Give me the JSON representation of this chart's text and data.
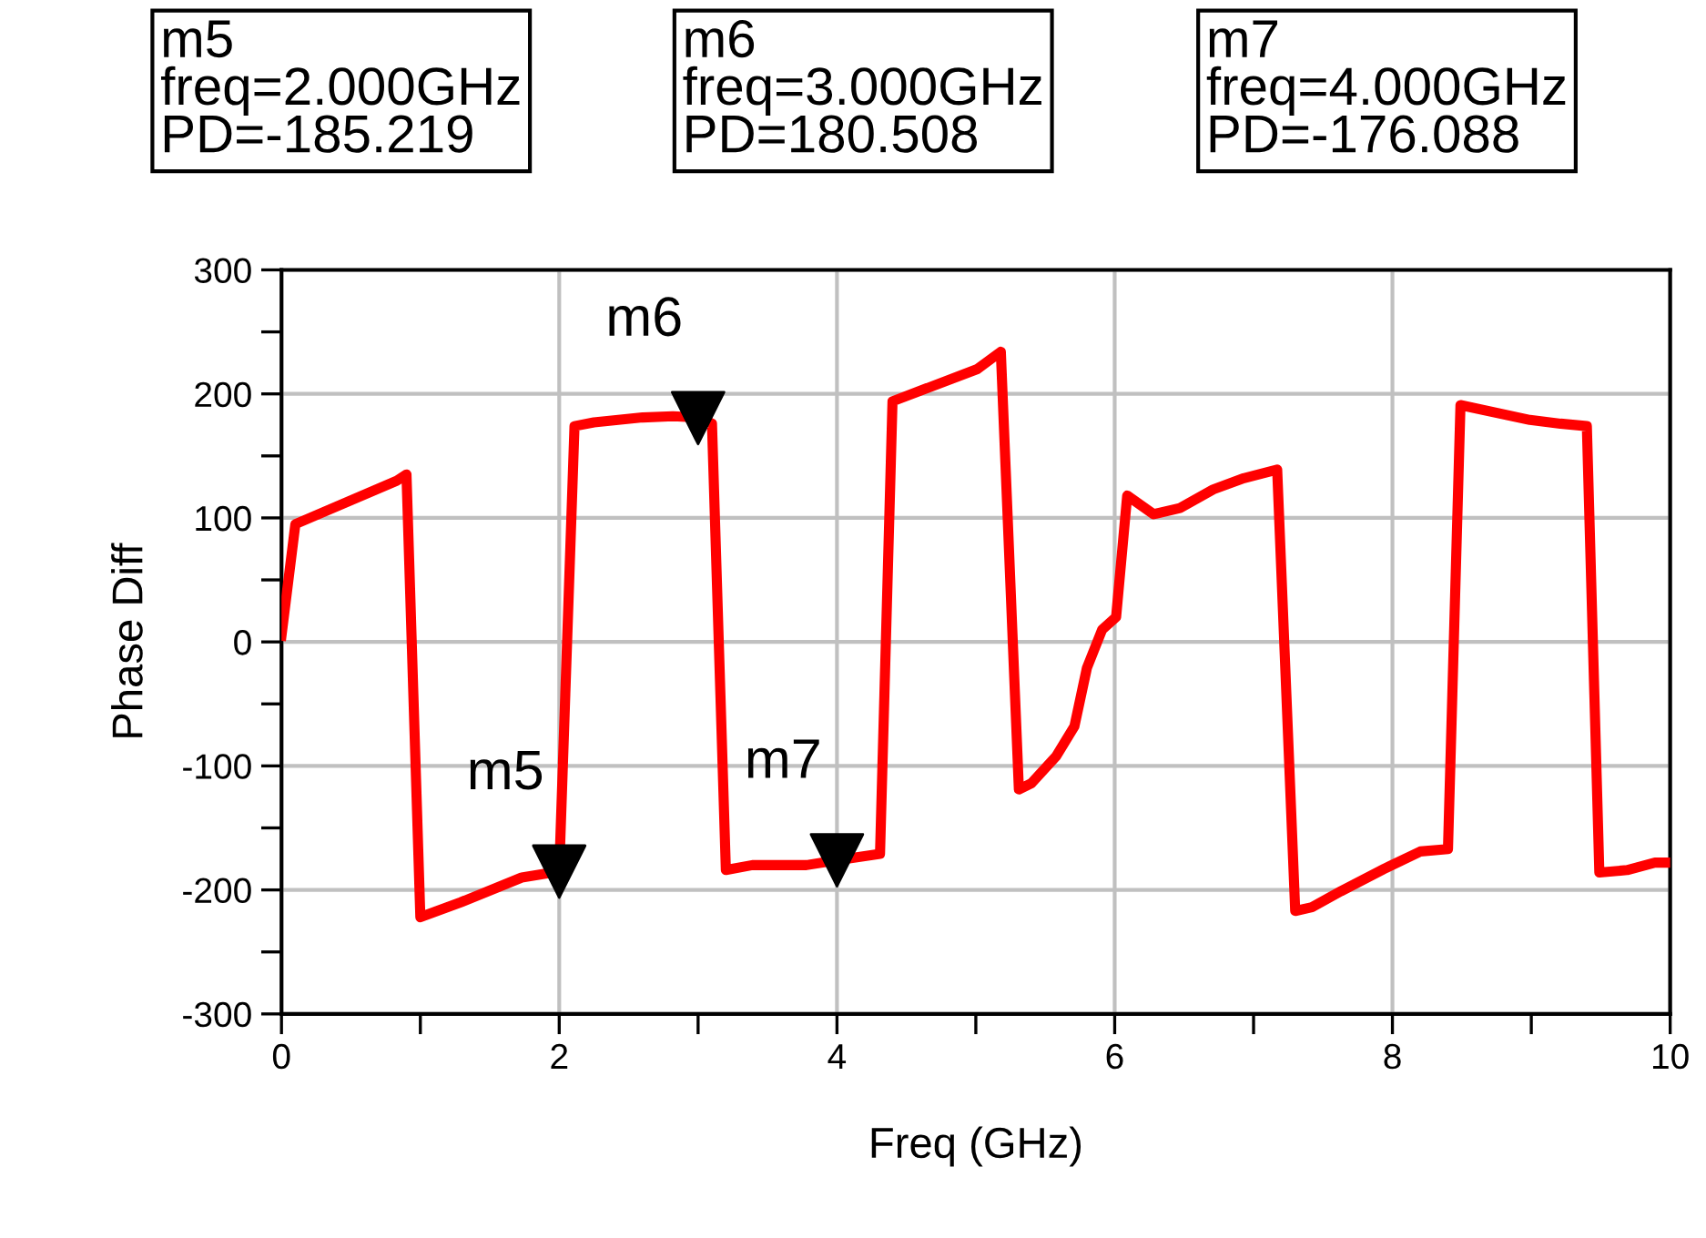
{
  "chart_data": {
    "type": "line",
    "xlabel": "Freq (GHz)",
    "ylabel": "Phase Diff",
    "x": [
      0,
      0.1,
      0.83,
      0.9,
      1.0,
      1.29,
      1.73,
      2.0,
      2.11,
      2.25,
      2.6,
      2.82,
      3.0,
      3.1,
      3.2,
      3.39,
      3.78,
      4.0,
      4.31,
      4.4,
      5.01,
      5.18,
      5.31,
      5.4,
      5.58,
      5.71,
      5.8,
      5.91,
      6.01,
      6.09,
      6.28,
      6.47,
      6.71,
      6.93,
      7.17,
      7.3,
      7.42,
      7.63,
      7.94,
      8.2,
      8.4,
      8.49,
      8.99,
      9.21,
      9.4,
      9.49,
      9.69,
      9.89,
      10
    ],
    "series": [
      {
        "color": "#ff0000",
        "values": [
          5,
          95,
          130,
          135,
          -222,
          -210,
          -190,
          -185,
          174,
          177,
          181,
          182,
          181,
          176,
          -184,
          -180,
          -180,
          -176,
          -171,
          194,
          220,
          234,
          -119,
          -114,
          -92,
          -68,
          -21,
          10,
          20,
          118,
          103,
          108,
          123,
          132,
          139,
          -217,
          -214,
          -201,
          -183,
          -169,
          -167,
          191,
          179,
          176,
          174,
          -186,
          -184,
          -178,
          -178
        ]
      }
    ],
    "xlim": [
      0,
      10
    ],
    "xticks": [
      0,
      2,
      4,
      6,
      8,
      10
    ],
    "ylim": [
      -300,
      300
    ],
    "yticks": [
      -300,
      -200,
      -100,
      0,
      100,
      200,
      300
    ],
    "grid": true,
    "line_style": "solid",
    "marker": "none",
    "annotations": [
      {
        "text": "m5",
        "x": 2.0,
        "y": -185.219
      },
      {
        "text": "m6",
        "x": 3.0,
        "y": 180.508
      },
      {
        "text": "m7",
        "x": 4.0,
        "y": -176.088
      },
      "m5\nfreq=2.000GHz\nPD=-185.219",
      "m6\nfreq=3.000GHz\nPD=180.508",
      "m7\nfreq=4.000GHz\nPD=-176.088"
    ]
  }
}
